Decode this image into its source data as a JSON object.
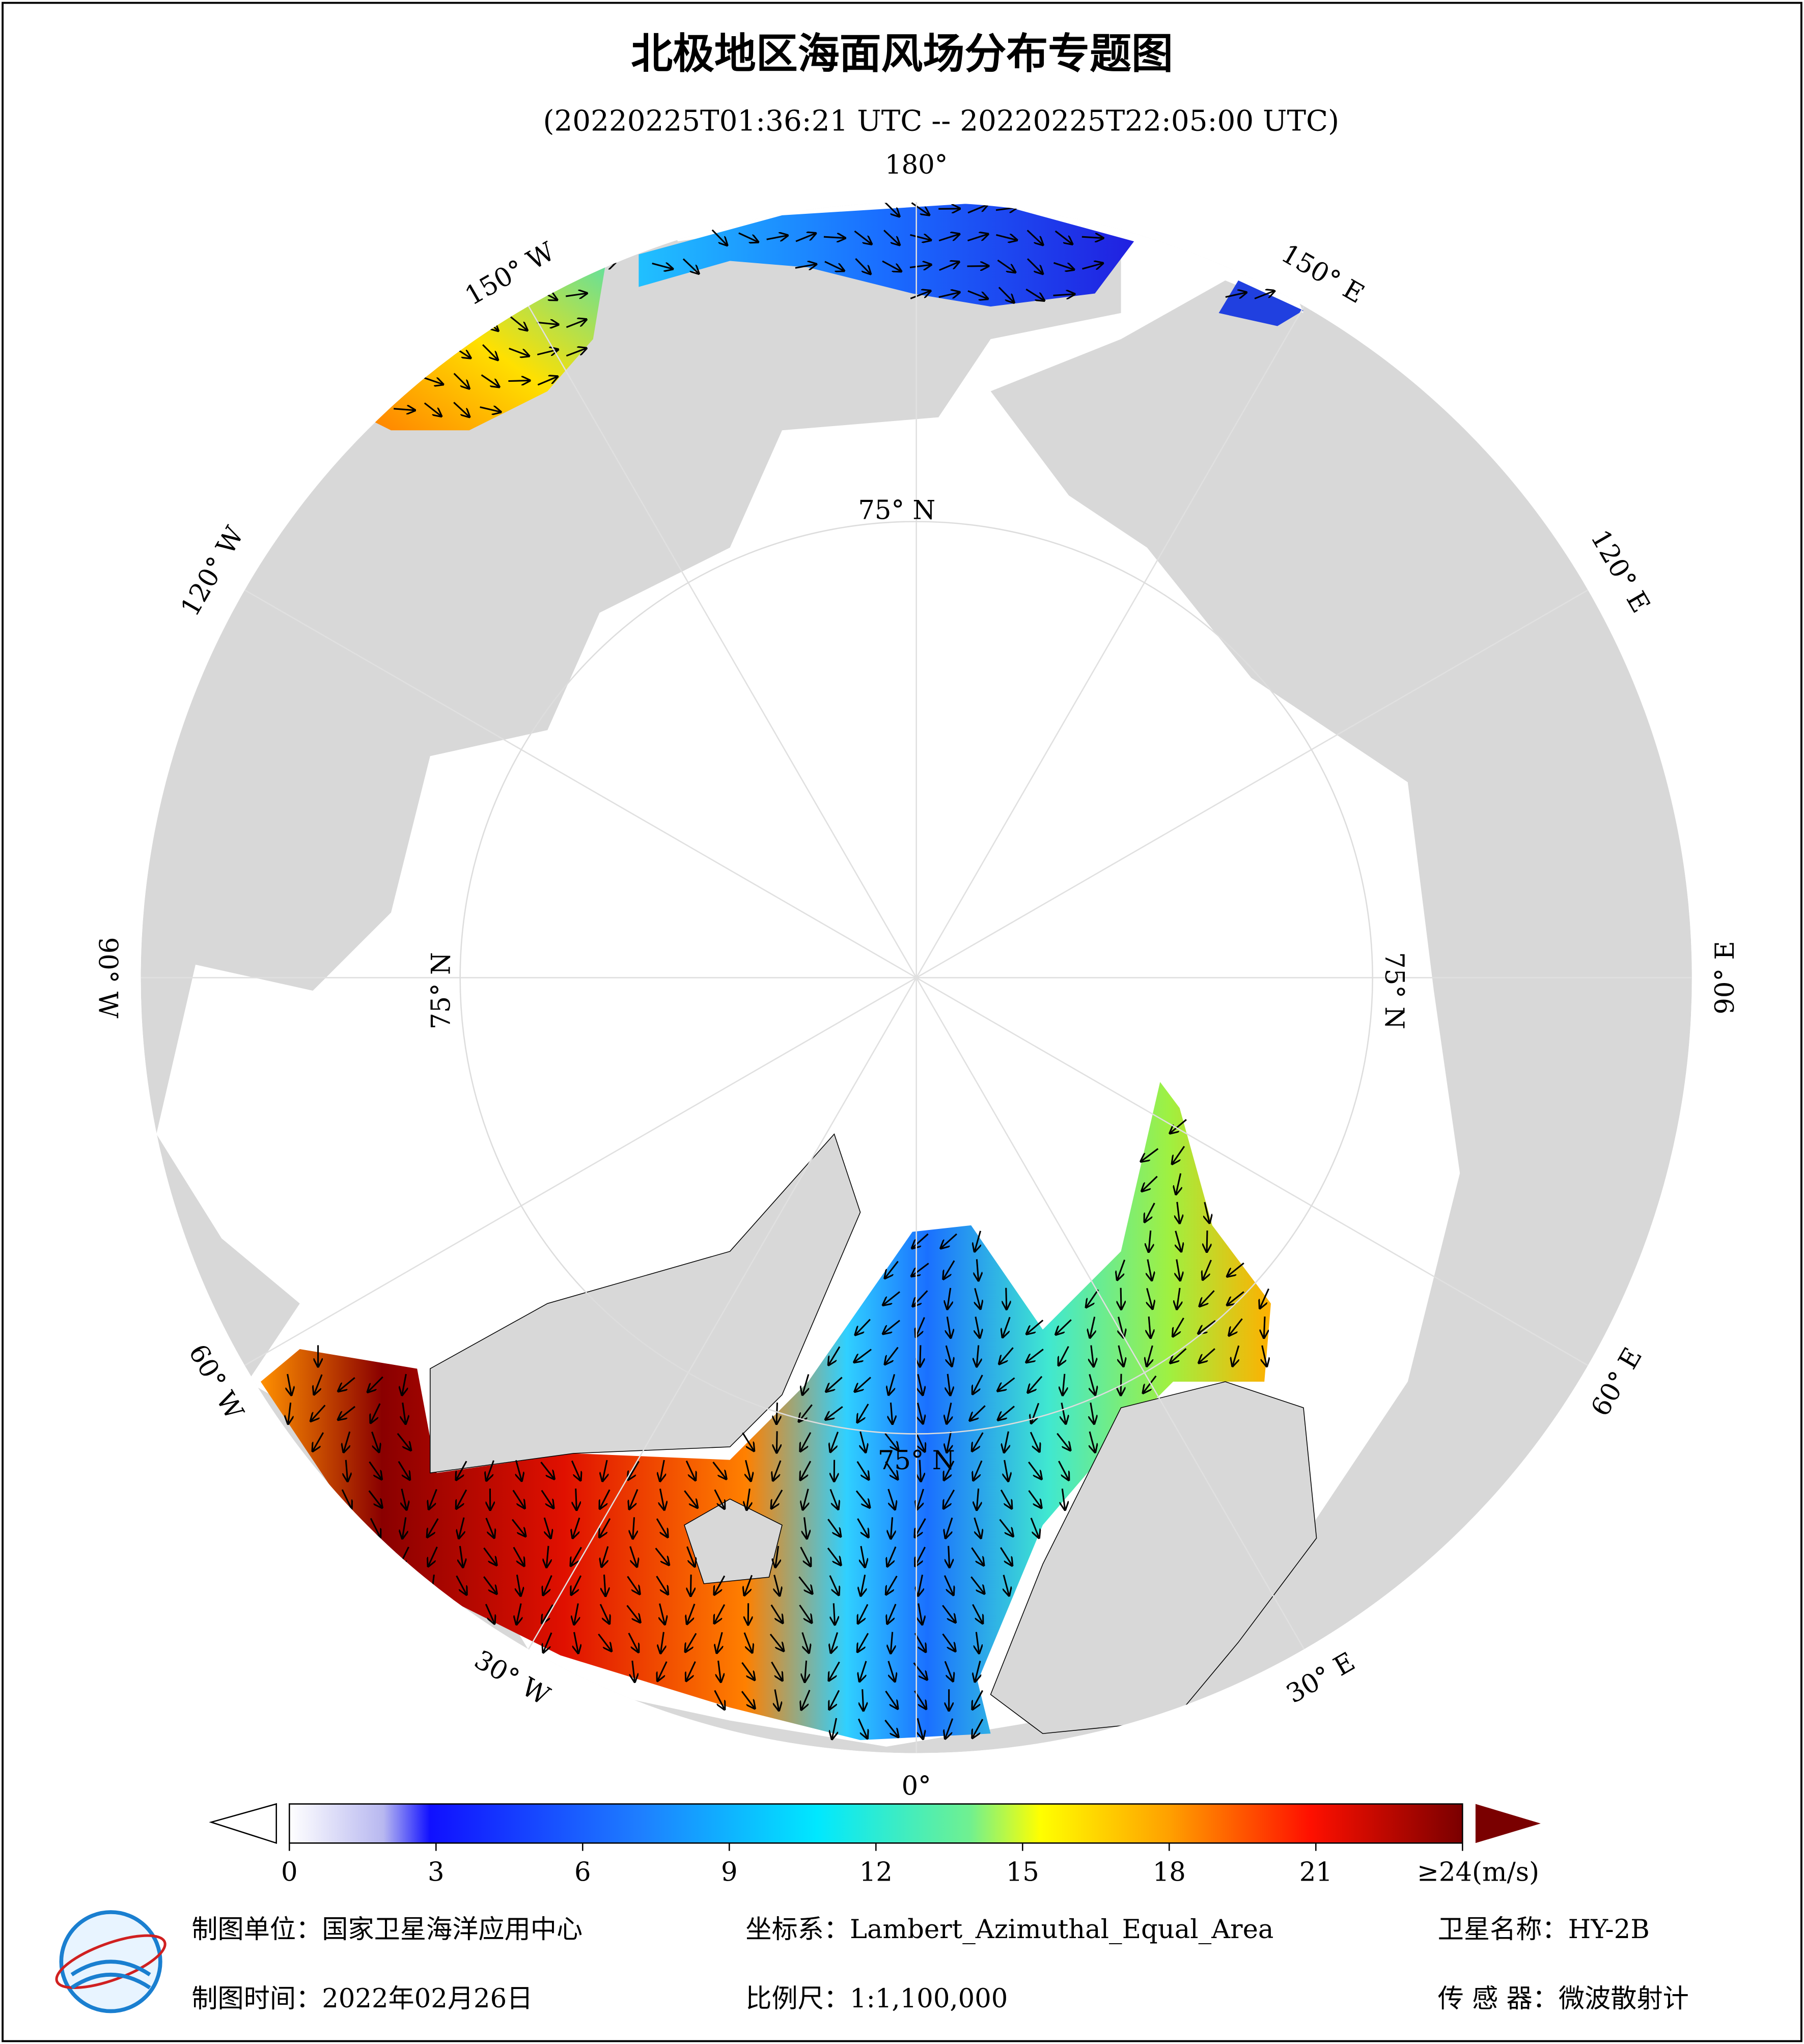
{
  "header": {
    "title": "北极地区海面风场分布专题图",
    "subtitle": "(20220225T01:36:21 UTC -- 20220225T22:05:00 UTC)"
  },
  "map": {
    "meridian_labels": [
      "0°",
      "30° E",
      "60° E",
      "90° E",
      "120° E",
      "150° E",
      "180°",
      "150° W",
      "120° W",
      "90° W",
      "60° W",
      "30° W"
    ],
    "latitude_labels": [
      "75° N",
      "75° N",
      "75° N",
      "75° N"
    ]
  },
  "colorbar": {
    "lim": [
      0,
      24
    ],
    "ticks": [
      0,
      3,
      6,
      9,
      12,
      15,
      18,
      21,
      {
        "value": 24,
        "label": "≥24(m/s)"
      }
    ]
  },
  "footer": {
    "unit": "制图单位：国家卫星海洋应用中心",
    "crs": "坐标系：Lambert_Azimuthal_Equal_Area",
    "satellite": "卫星名称：HY-2B",
    "date": "制图时间：2022年02月26日",
    "scale": "比例尺：1:1,100,000",
    "sensor": "传 感 器：微波散射计"
  }
}
